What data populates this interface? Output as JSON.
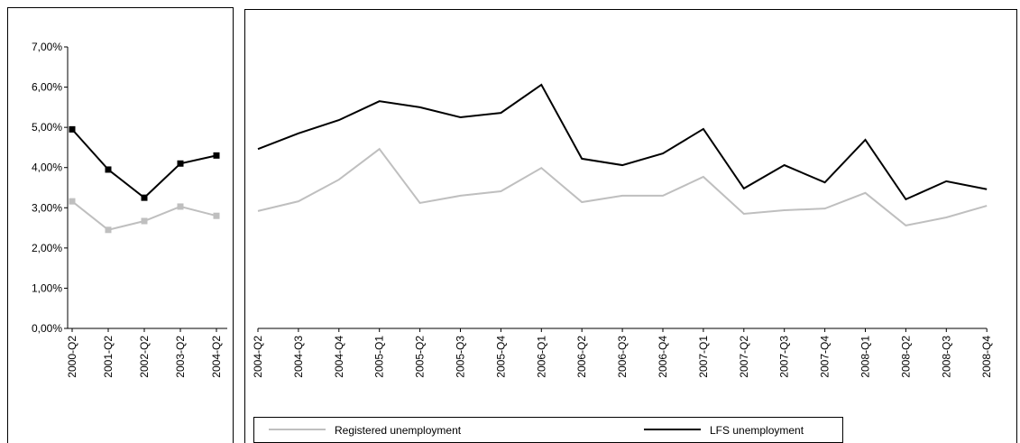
{
  "chart_data": [
    {
      "type": "line",
      "categories": [
        "2000-Q2",
        "2001-Q2",
        "2002-Q2",
        "2003-Q2",
        "2004-Q2"
      ],
      "series": [
        {
          "color": "#000000",
          "marker": "square",
          "values": [
            4.95,
            3.95,
            3.25,
            4.1,
            4.3
          ]
        },
        {
          "color": "#bfbfbf",
          "marker": "square",
          "values": [
            3.16,
            2.45,
            2.67,
            3.03,
            2.8
          ]
        }
      ],
      "ylim": [
        0,
        7
      ],
      "yticks": [
        {
          "value": 0,
          "label": "0,00%"
        },
        {
          "value": 1,
          "label": "1,00%"
        },
        {
          "value": 2,
          "label": "2,00%"
        },
        {
          "value": 3,
          "label": "3,00%"
        },
        {
          "value": 4,
          "label": "4,00%"
        },
        {
          "value": 5,
          "label": "5,00%"
        },
        {
          "value": 6,
          "label": "6,00%"
        },
        {
          "value": 7,
          "label": "7,00%"
        }
      ],
      "grid": false
    },
    {
      "type": "line",
      "categories": [
        "2004-Q2",
        "2004-Q3",
        "2004-Q4",
        "2005-Q1",
        "2005-Q2",
        "2005-Q3",
        "2005-Q4",
        "2006-Q1",
        "2006-Q2",
        "2006-Q3",
        "2006-Q4",
        "2007-Q1",
        "2007-Q2",
        "2007-Q3",
        "2007-Q4",
        "2008-Q1",
        "2008-Q2",
        "2008-Q3",
        "2008-Q4"
      ],
      "series": [
        {
          "name": "Registered unemployment",
          "color": "#bfbfbf",
          "values": [
            2.92,
            3.16,
            3.7,
            4.46,
            3.12,
            3.3,
            3.41,
            3.99,
            3.14,
            3.3,
            3.3,
            3.77,
            2.85,
            2.94,
            2.98,
            3.37,
            2.56,
            2.76,
            3.05
          ]
        },
        {
          "name": "LFS unemployment",
          "color": "#000000",
          "values": [
            4.46,
            4.85,
            5.18,
            5.65,
            5.5,
            5.25,
            5.36,
            6.06,
            4.22,
            4.06,
            4.35,
            4.96,
            3.48,
            4.06,
            3.63,
            4.69,
            3.21,
            3.66,
            3.46
          ]
        }
      ],
      "ylim": [
        0,
        7
      ],
      "legend": "bottom",
      "grid": false
    }
  ]
}
